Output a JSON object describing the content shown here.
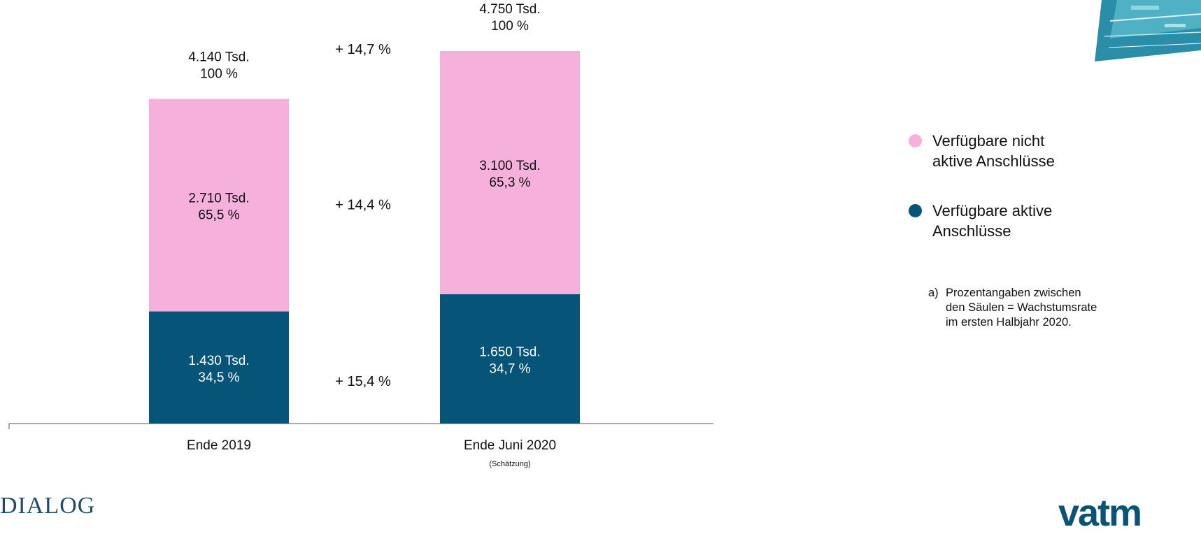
{
  "chart_data": {
    "type": "bar",
    "stacked": true,
    "categories": [
      "Ende 2019",
      "Ende Juni 2020"
    ],
    "category_notes": [
      "",
      "(Schätzung)"
    ],
    "series": [
      {
        "name": "Verfügbare aktive Anschlüsse",
        "color": "#065478",
        "values": [
          1430,
          1650
        ],
        "value_labels": [
          "1.430 Tsd.",
          "1.650 Tsd."
        ],
        "percent_labels": [
          "34,5 %",
          "34,7 %"
        ]
      },
      {
        "name": "Verfügbare nicht aktive Anschlüsse",
        "color": "#f6b0dc",
        "values": [
          2710,
          3100
        ],
        "value_labels": [
          "2.710 Tsd.",
          "3.100 Tsd."
        ],
        "percent_labels": [
          "65,5 %",
          "65,3 %"
        ]
      }
    ],
    "totals": {
      "values": [
        4140,
        4750
      ],
      "value_labels": [
        "4.140 Tsd.",
        "4.750 Tsd."
      ],
      "percent_labels": [
        "100 %",
        "100 %"
      ]
    },
    "growth_labels": {
      "total": "+ 14,7 %",
      "nicht_aktive": "+ 14,4 %",
      "aktive": "+ 15,4 %"
    },
    "ylim": [
      0,
      4750
    ]
  },
  "legend": [
    {
      "label": "Verfügbare nicht\naktive Anschlüsse",
      "color": "#f6b0dc"
    },
    {
      "label": "Verfügbare aktive\nAnschlüsse",
      "color": "#065478"
    }
  ],
  "footnote": {
    "marker": "a)",
    "text": "Prozentangaben zwischen\nden Säulen = Wachstumsrate\nim ersten Halbjahr 2020."
  },
  "branding": {
    "left_logo_text": "DIALOG",
    "right_logo_text": "vatm"
  }
}
